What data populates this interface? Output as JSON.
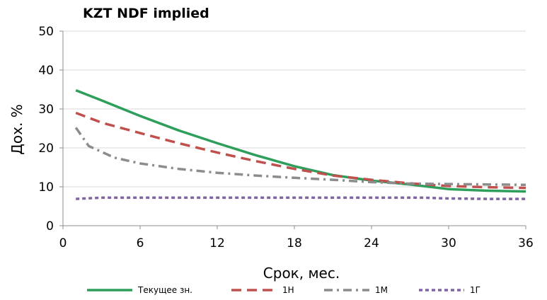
{
  "chart_data": {
    "type": "line",
    "title": "KZT NDF implied",
    "xlabel": "Срок, мес.",
    "ylabel": "Дох. %",
    "xlim": [
      0,
      36
    ],
    "ylim": [
      0,
      50
    ],
    "x_ticks": [
      0,
      6,
      12,
      18,
      24,
      30,
      36
    ],
    "y_ticks": [
      0,
      10,
      20,
      30,
      40,
      50
    ],
    "grid": "horizontal",
    "legend_position": "bottom",
    "series": [
      {
        "name": "Текущее зн.",
        "color": "#2e9e5b",
        "style": "solid",
        "points": [
          [
            1,
            34.8
          ],
          [
            3,
            32.2
          ],
          [
            6,
            28.2
          ],
          [
            9,
            24.5
          ],
          [
            12,
            21.2
          ],
          [
            15,
            18.1
          ],
          [
            18,
            15.3
          ],
          [
            21,
            13.0
          ],
          [
            24,
            11.6
          ],
          [
            27,
            10.6
          ],
          [
            30,
            9.4
          ],
          [
            33,
            9.0
          ],
          [
            36,
            8.8
          ]
        ]
      },
      {
        "name": "1Н",
        "color": "#c0504d",
        "style": "dash",
        "points": [
          [
            1,
            29.0
          ],
          [
            3,
            26.5
          ],
          [
            6,
            23.8
          ],
          [
            9,
            21.2
          ],
          [
            12,
            18.8
          ],
          [
            15,
            16.6
          ],
          [
            18,
            14.6
          ],
          [
            21,
            12.9
          ],
          [
            24,
            11.8
          ],
          [
            27,
            10.9
          ],
          [
            30,
            10.2
          ],
          [
            33,
            9.9
          ],
          [
            36,
            9.7
          ]
        ]
      },
      {
        "name": "1М",
        "color": "#8c8c8c",
        "style": "dashdot",
        "points": [
          [
            1,
            25.2
          ],
          [
            2,
            20.5
          ],
          [
            4,
            17.5
          ],
          [
            6,
            16.0
          ],
          [
            9,
            14.6
          ],
          [
            12,
            13.6
          ],
          [
            15,
            12.9
          ],
          [
            18,
            12.3
          ],
          [
            21,
            11.8
          ],
          [
            24,
            11.2
          ],
          [
            27,
            10.8
          ],
          [
            30,
            10.7
          ],
          [
            33,
            10.6
          ],
          [
            36,
            10.5
          ]
        ]
      },
      {
        "name": "1Г",
        "color": "#8064a2",
        "style": "shortdash",
        "points": [
          [
            1,
            6.9
          ],
          [
            3,
            7.2
          ],
          [
            6,
            7.2
          ],
          [
            12,
            7.2
          ],
          [
            18,
            7.2
          ],
          [
            24,
            7.2
          ],
          [
            28,
            7.2
          ],
          [
            30,
            7.0
          ],
          [
            33,
            6.9
          ],
          [
            36,
            6.9
          ]
        ]
      }
    ]
  }
}
